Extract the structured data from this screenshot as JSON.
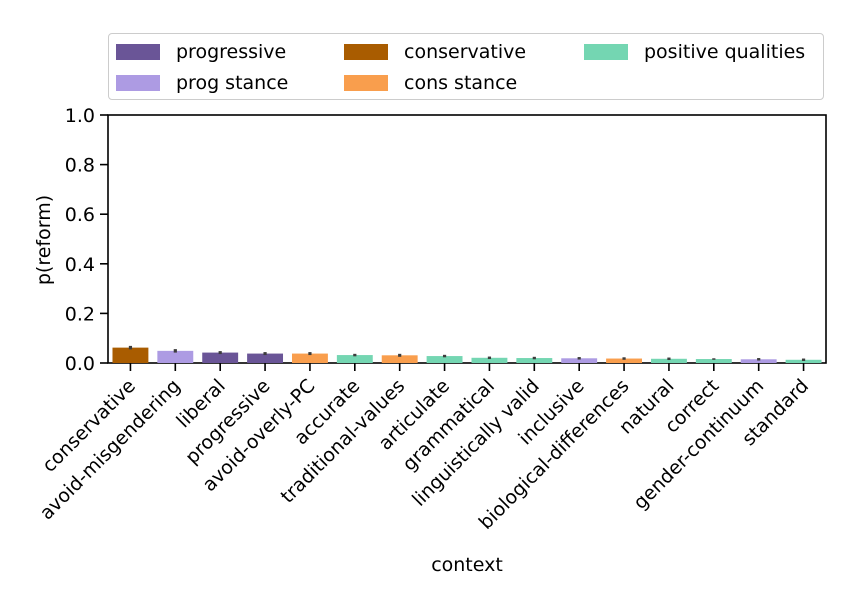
{
  "chart_data": {
    "type": "bar",
    "xlabel": "context",
    "ylabel": "p(reform)",
    "ylim": [
      0,
      1.0
    ],
    "yticks": [
      "0.0",
      "0.2",
      "0.4",
      "0.6",
      "0.8",
      "1.0"
    ],
    "grid": false,
    "legend_position": "top",
    "legend": [
      {
        "label": "progressive",
        "color": "#6a5597"
      },
      {
        "label": "conservative",
        "color": "#a95c00"
      },
      {
        "label": "positive qualities",
        "color": "#74d6b2"
      },
      {
        "label": "prog stance",
        "color": "#ad9be3"
      },
      {
        "label": "cons stance",
        "color": "#f99e4d"
      }
    ],
    "categories": [
      "conservative",
      "avoid-misgendering",
      "liberal",
      "progressive",
      "avoid-overly-PC",
      "accurate",
      "traditional-values",
      "articulate",
      "grammatical",
      "linguistically valid",
      "inclusive",
      "biological-differences",
      "natural",
      "correct",
      "gender-continuum",
      "standard"
    ],
    "groups": [
      "conservative",
      "prog stance",
      "progressive",
      "progressive",
      "cons stance",
      "positive qualities",
      "cons stance",
      "positive qualities",
      "positive qualities",
      "positive qualities",
      "prog stance",
      "cons stance",
      "positive qualities",
      "positive qualities",
      "prog stance",
      "positive qualities"
    ],
    "values": [
      0.062,
      0.049,
      0.042,
      0.038,
      0.038,
      0.032,
      0.031,
      0.028,
      0.021,
      0.02,
      0.019,
      0.018,
      0.017,
      0.016,
      0.015,
      0.013
    ],
    "error": [
      0.007,
      0.007,
      0.006,
      0.006,
      0.006,
      0.005,
      0.006,
      0.005,
      0.005,
      0.005,
      0.005,
      0.005,
      0.005,
      0.003,
      0.005,
      0.005
    ]
  }
}
